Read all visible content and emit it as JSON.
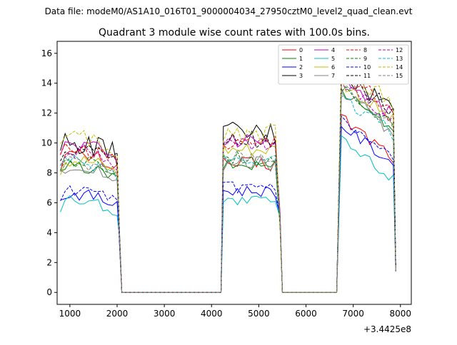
{
  "figure": {
    "suptitle": "Data file: modeM0/AS1A10_016T01_9000004034_27950cztM0_level2_quad_clean.evt"
  },
  "chart_data": {
    "type": "line",
    "title": "Quadrant 3 module wise count rates with 100.0s bins.",
    "xlabel": "",
    "ylabel": "",
    "x_offset_label": "+3.4425e8",
    "xlim": [
      730,
      8230
    ],
    "ylim": [
      -0.8,
      16.8
    ],
    "xticks": [
      1000,
      2000,
      3000,
      4000,
      5000,
      6000,
      7000,
      8000
    ],
    "yticks": [
      0,
      2,
      4,
      6,
      8,
      10,
      12,
      14,
      16
    ],
    "grid": false,
    "legend": {
      "placement": "upper right",
      "columns": 4
    },
    "series": [
      {
        "name": "0",
        "color": "#ff0000",
        "dashed": false,
        "base": 9.1,
        "amp": 0.5,
        "gti": [
          9.2,
          8.6,
          10.3
        ]
      },
      {
        "name": "1",
        "color": "#008000",
        "dashed": false,
        "base": 9.6,
        "amp": 0.4,
        "gti": [
          8.4,
          8.5,
          12.2
        ]
      },
      {
        "name": "2",
        "color": "#0000ff",
        "dashed": false,
        "base": 7.2,
        "amp": 0.4,
        "gti": [
          6.6,
          6.8,
          9.8
        ]
      },
      {
        "name": "3",
        "color": "#000000",
        "dashed": false,
        "base": 10.8,
        "amp": 0.8,
        "gti": [
          10.0,
          10.6,
          13.4
        ]
      },
      {
        "name": "4",
        "color": "#bf00bf",
        "dashed": false,
        "base": 10.2,
        "amp": 0.5,
        "gti": [
          9.9,
          10.2,
          13.0
        ]
      },
      {
        "name": "5",
        "color": "#00bfbf",
        "dashed": false,
        "base": 6.6,
        "amp": 0.4,
        "gti": [
          6.2,
          6.1,
          8.8
        ]
      },
      {
        "name": "6",
        "color": "#bfbf00",
        "dashed": false,
        "base": 9.9,
        "amp": 0.5,
        "gti": [
          8.9,
          9.6,
          12.7
        ]
      },
      {
        "name": "7",
        "color": "#808080",
        "dashed": false,
        "base": 9.2,
        "amp": 0.5,
        "gti": [
          8.4,
          8.6,
          12.0
        ]
      },
      {
        "name": "8",
        "color": "#ff0000",
        "dashed": true,
        "base": 10.3,
        "amp": 0.5,
        "gti": [
          9.6,
          10.0,
          13.4
        ]
      },
      {
        "name": "9",
        "color": "#008000",
        "dashed": true,
        "base": 9.6,
        "amp": 0.5,
        "gti": [
          8.7,
          9.0,
          12.4
        ]
      },
      {
        "name": "10",
        "color": "#0000ff",
        "dashed": true,
        "base": 7.1,
        "amp": 0.4,
        "gti": [
          6.8,
          7.0,
          10.0
        ]
      },
      {
        "name": "11",
        "color": "#000000",
        "dashed": true,
        "base": 10.2,
        "amp": 0.6,
        "gti": [
          9.7,
          10.2,
          13.3
        ]
      },
      {
        "name": "12",
        "color": "#bf00bf",
        "dashed": true,
        "base": 10.0,
        "amp": 0.5,
        "gti": [
          9.5,
          9.9,
          12.6
        ]
      },
      {
        "name": "13",
        "color": "#00bfbf",
        "dashed": true,
        "base": 9.1,
        "amp": 0.5,
        "gti": [
          8.7,
          8.9,
          11.8
        ]
      },
      {
        "name": "14",
        "color": "#bfbf00",
        "dashed": true,
        "base": 10.9,
        "amp": 0.7,
        "gti": [
          10.2,
          10.6,
          13.8
        ]
      },
      {
        "name": "15",
        "color": "#808080",
        "dashed": true,
        "base": 9.4,
        "amp": 0.5,
        "gti": [
          8.6,
          9.1,
          12.3
        ]
      }
    ]
  }
}
